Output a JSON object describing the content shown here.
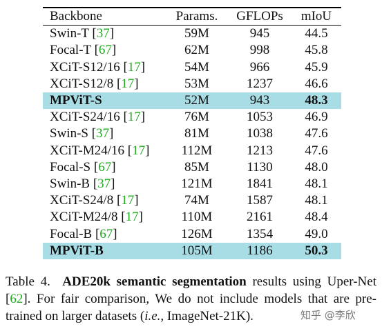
{
  "table": {
    "headers": [
      "Backbone",
      "Params.",
      "GFLOPs",
      "mIoU"
    ],
    "group1": [
      {
        "name": "Swin-T",
        "ref": "37",
        "params": "59M",
        "gflops": "945",
        "miou": "44.5"
      },
      {
        "name": "Focal-T",
        "ref": "67",
        "params": "62M",
        "gflops": "998",
        "miou": "45.8"
      },
      {
        "name": "XCiT-S12/16",
        "ref": "17",
        "params": "54M",
        "gflops": "966",
        "miou": "45.9"
      },
      {
        "name": "XCiT-S12/8",
        "ref": "17",
        "params": "53M",
        "gflops": "1237",
        "miou": "46.6"
      }
    ],
    "highlight1": {
      "name": "MPViT-S",
      "params": "52M",
      "gflops": "943",
      "miou": "48.3"
    },
    "group2": [
      {
        "name": "XCiT-S24/16",
        "ref": "17",
        "params": "76M",
        "gflops": "1053",
        "miou": "46.9"
      },
      {
        "name": "Swin-S",
        "ref": "37",
        "params": "81M",
        "gflops": "1038",
        "miou": "47.6"
      },
      {
        "name": "XCiT-M24/16",
        "ref": "17",
        "params": "112M",
        "gflops": "1213",
        "miou": "47.6"
      },
      {
        "name": "Focal-S",
        "ref": "67",
        "params": "85M",
        "gflops": "1130",
        "miou": "48.0"
      },
      {
        "name": "Swin-B",
        "ref": "37",
        "params": "121M",
        "gflops": "1841",
        "miou": "48.1"
      },
      {
        "name": "XCiT-S24/8",
        "ref": "17",
        "params": "74M",
        "gflops": "1587",
        "miou": "48.1"
      },
      {
        "name": "XCiT-M24/8",
        "ref": "17",
        "params": "110M",
        "gflops": "2161",
        "miou": "48.4"
      },
      {
        "name": "Focal-B",
        "ref": "67",
        "params": "126M",
        "gflops": "1354",
        "miou": "49.0"
      }
    ],
    "highlight2": {
      "name": "MPViT-B",
      "params": "105M",
      "gflops": "1186",
      "miou": "50.3"
    },
    "highlight_color": "#a9dde6",
    "ref_color": "#22aa22"
  },
  "caption": {
    "label": "Table 4.",
    "bold": "ADE20k semantic segmentation",
    "text1": " results using Uper-Net ",
    "ref": "62",
    "text2": ". For fair comparison, We do not include models that are pre-trained on larger datasets (",
    "ie": "i.e.,",
    "text3": " ImageNet-21K)."
  },
  "watermark": "知乎 @李欣"
}
